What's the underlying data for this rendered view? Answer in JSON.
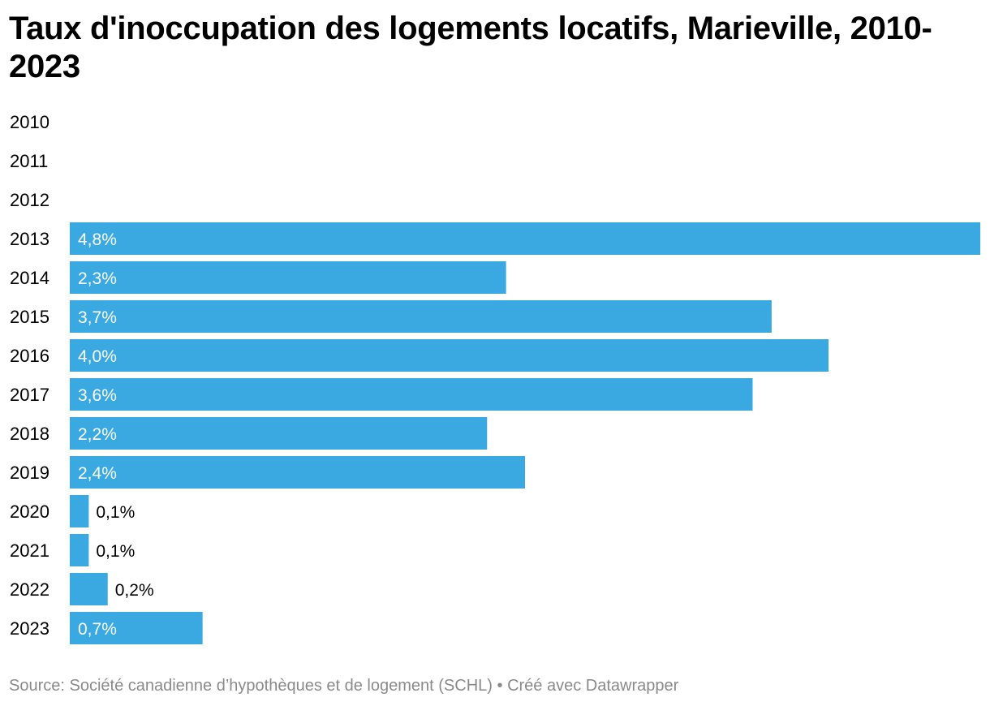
{
  "chart_data": {
    "type": "bar",
    "orientation": "horizontal",
    "title": "Taux d'inoccupation des logements locatifs, Marieville, 2010-2023",
    "categories": [
      "2010",
      "2011",
      "2012",
      "2013",
      "2014",
      "2015",
      "2016",
      "2017",
      "2018",
      "2019",
      "2020",
      "2021",
      "2022",
      "2023"
    ],
    "values": [
      null,
      null,
      null,
      4.8,
      2.3,
      3.7,
      4.0,
      3.6,
      2.2,
      2.4,
      0.1,
      0.1,
      0.2,
      0.7
    ],
    "value_labels": [
      "",
      "",
      "",
      "4,8%",
      "2,3%",
      "3,7%",
      "4,0%",
      "3,6%",
      "2,2%",
      "2,4%",
      "0,1%",
      "0,1%",
      "0,2%",
      "0,7%"
    ],
    "xlim": [
      0,
      4.8
    ],
    "bar_color": "#3ba9e1",
    "grid": false,
    "legend": "none"
  },
  "footer": {
    "source": "Source: Société canadienne d’hypothèques et de logement (SCHL)",
    "separator": "•",
    "credit": "Créé avec Datawrapper"
  }
}
